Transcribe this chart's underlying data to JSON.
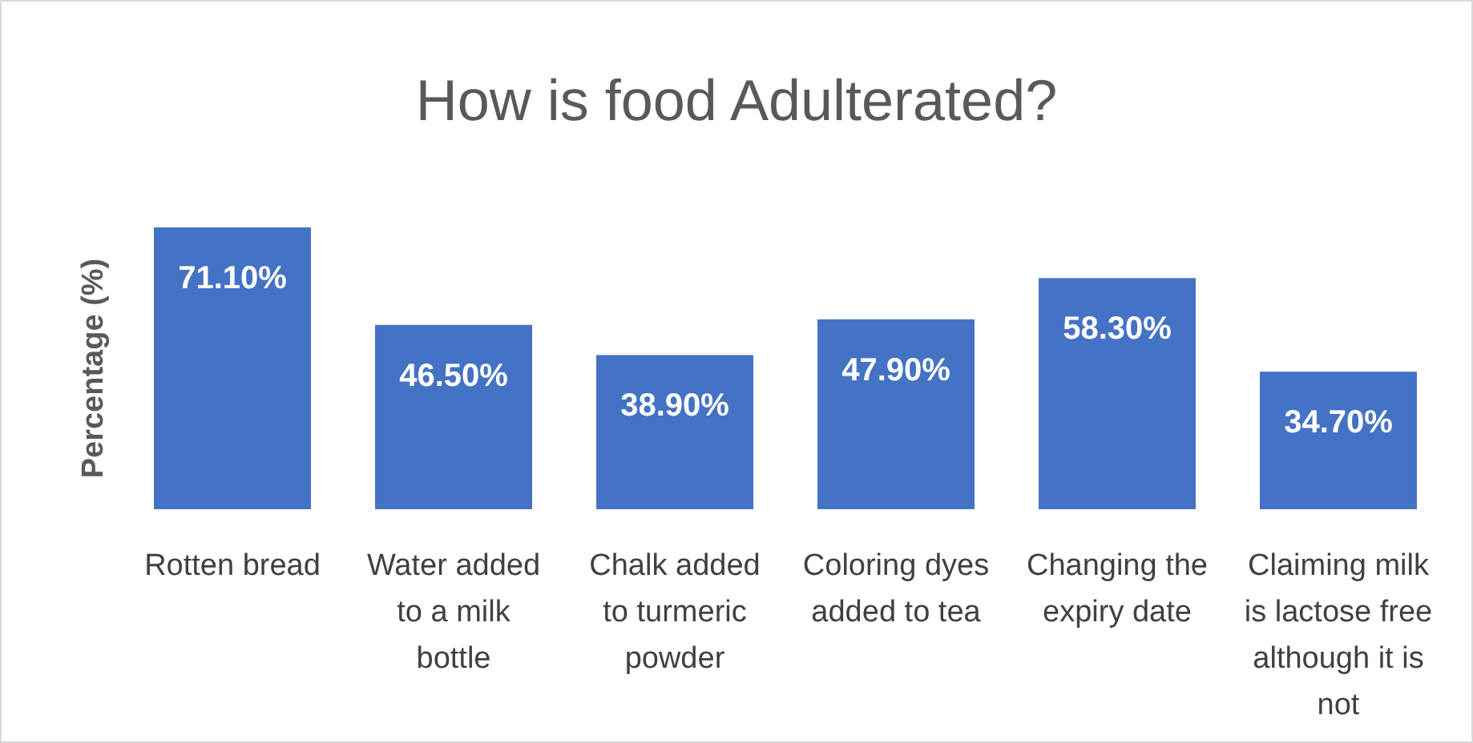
{
  "chart_data": {
    "type": "bar",
    "title": "How is food Adulterated?",
    "ylabel": "Percentage (%)",
    "categories": [
      "Rotten bread",
      "Water added to a milk bottle",
      "Chalk added to turmeric powder",
      "Coloring dyes added to tea",
      "Changing the expiry date",
      "Claiming milk is lactose free although it is not"
    ],
    "values": [
      71.1,
      46.5,
      38.9,
      47.9,
      58.3,
      34.7
    ],
    "value_labels": [
      "71.10%",
      "46.50%",
      "38.90%",
      "47.90%",
      "58.30%",
      "34.70%"
    ],
    "color": "#4472c4"
  }
}
